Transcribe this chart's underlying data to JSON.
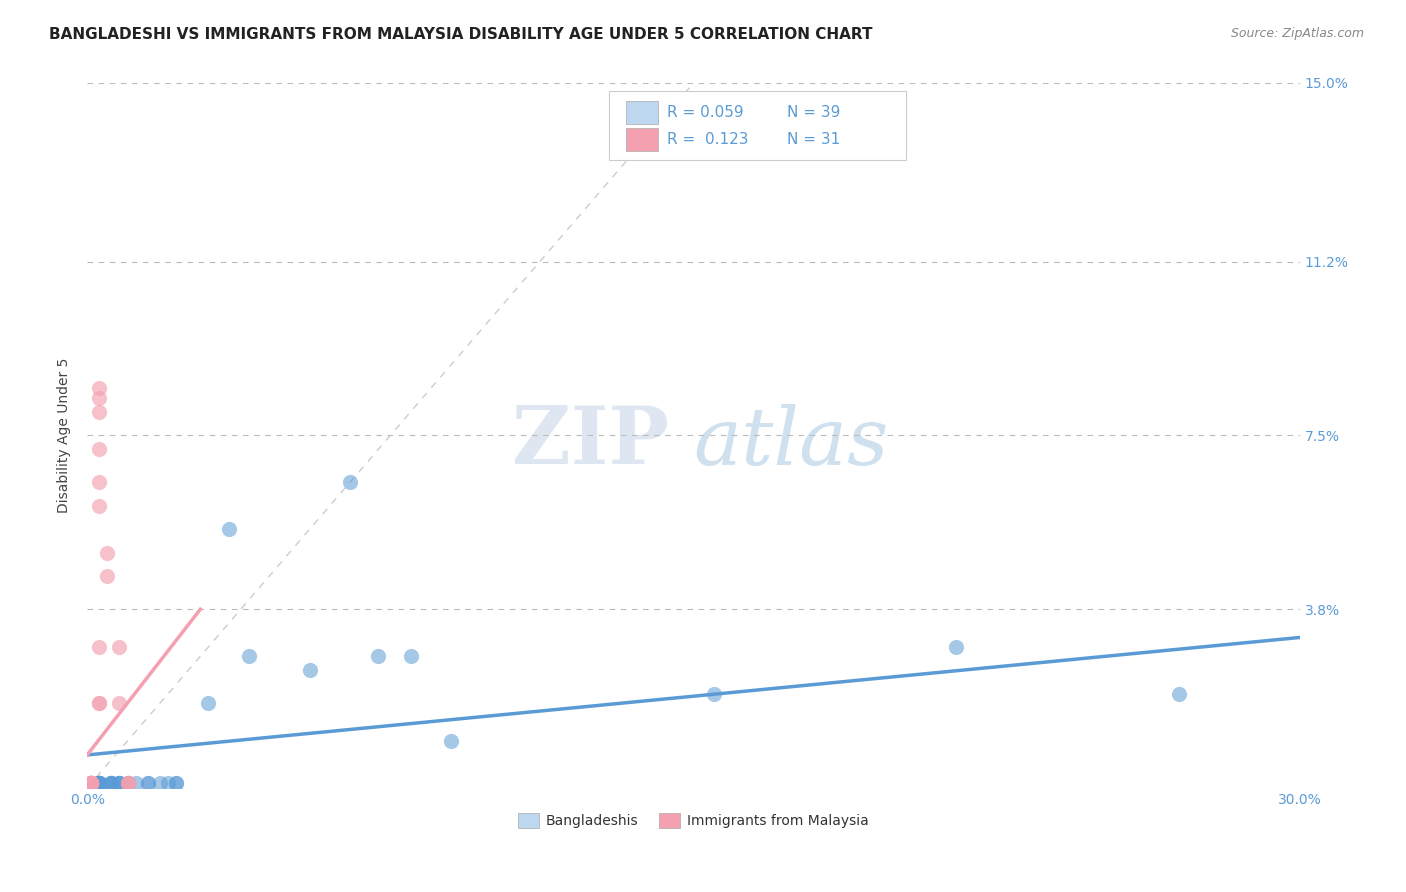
{
  "title": "BANGLADESHI VS IMMIGRANTS FROM MALAYSIA DISABILITY AGE UNDER 5 CORRELATION CHART",
  "source": "Source: ZipAtlas.com",
  "ylabel": "Disability Age Under 5",
  "xlim": [
    0.0,
    0.3
  ],
  "ylim": [
    0.0,
    0.15
  ],
  "xticks": [
    0.0,
    0.05,
    0.1,
    0.15,
    0.2,
    0.25,
    0.3
  ],
  "xticklabels": [
    "0.0%",
    "",
    "",
    "",
    "",
    "",
    "30.0%"
  ],
  "yticks_right": [
    0.038,
    0.075,
    0.112,
    0.15
  ],
  "ytick_right_labels": [
    "3.8%",
    "7.5%",
    "11.2%",
    "15.0%"
  ],
  "legend_r1": "0.059",
  "legend_n1": "39",
  "legend_r2": "0.123",
  "legend_n2": "31",
  "blue_color": "#5B9BD5",
  "pink_color": "#F4A0B0",
  "blue_light": "#BDD7EE",
  "pink_light": "#F4A0B0",
  "axis_color": "#5B9BD5",
  "grid_color": "#BBBBBB",
  "background_color": "#FFFFFF",
  "title_fontsize": 11,
  "label_fontsize": 10,
  "tick_fontsize": 10,
  "legend_fontsize": 11,
  "blue_scatter_x": [
    0.003,
    0.003,
    0.003,
    0.003,
    0.003,
    0.003,
    0.003,
    0.003,
    0.003,
    0.003,
    0.006,
    0.006,
    0.006,
    0.006,
    0.006,
    0.008,
    0.008,
    0.008,
    0.008,
    0.01,
    0.01,
    0.012,
    0.015,
    0.015,
    0.018,
    0.02,
    0.022,
    0.022,
    0.03,
    0.035,
    0.04,
    0.055,
    0.065,
    0.072,
    0.08,
    0.09,
    0.155,
    0.215,
    0.27
  ],
  "blue_scatter_y": [
    0.001,
    0.001,
    0.001,
    0.001,
    0.001,
    0.001,
    0.001,
    0.001,
    0.001,
    0.001,
    0.001,
    0.001,
    0.001,
    0.001,
    0.001,
    0.001,
    0.001,
    0.001,
    0.001,
    0.001,
    0.001,
    0.001,
    0.001,
    0.001,
    0.001,
    0.001,
    0.001,
    0.001,
    0.018,
    0.055,
    0.028,
    0.025,
    0.065,
    0.028,
    0.028,
    0.01,
    0.02,
    0.03,
    0.02
  ],
  "pink_scatter_x": [
    0.001,
    0.001,
    0.001,
    0.001,
    0.001,
    0.001,
    0.001,
    0.001,
    0.001,
    0.001,
    0.001,
    0.001,
    0.001,
    0.001,
    0.001,
    0.003,
    0.003,
    0.003,
    0.003,
    0.003,
    0.003,
    0.003,
    0.003,
    0.003,
    0.005,
    0.005,
    0.008,
    0.008,
    0.01,
    0.01,
    0.01
  ],
  "pink_scatter_y": [
    0.001,
    0.001,
    0.001,
    0.001,
    0.001,
    0.001,
    0.001,
    0.001,
    0.001,
    0.001,
    0.001,
    0.001,
    0.001,
    0.001,
    0.001,
    0.018,
    0.018,
    0.03,
    0.06,
    0.065,
    0.072,
    0.08,
    0.083,
    0.085,
    0.045,
    0.05,
    0.018,
    0.03,
    0.001,
    0.001,
    0.001
  ]
}
